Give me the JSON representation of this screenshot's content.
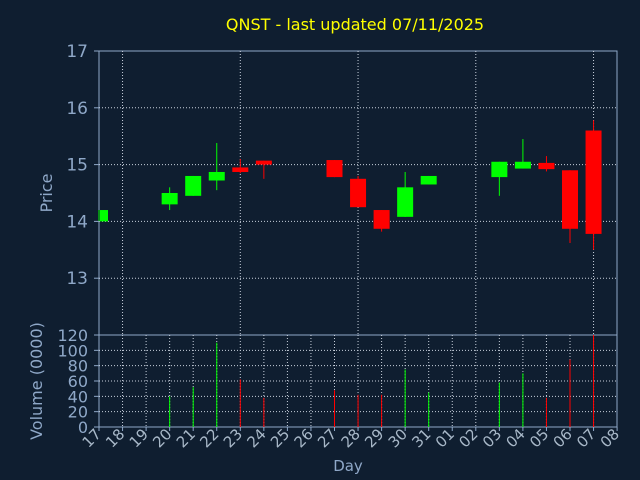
{
  "chart_data": [
    {
      "type": "candlestick",
      "title": "QNST - last updated 07/11/2025",
      "ylabel": "Price",
      "ylim": [
        12,
        17
      ],
      "yticks": [
        13,
        14,
        15,
        16,
        17
      ],
      "grid": true,
      "up_color": "#00ff00",
      "down_color": "#ff0000",
      "categories": [
        "17",
        "18",
        "19",
        "20",
        "21",
        "22",
        "23",
        "24",
        "25",
        "26",
        "27",
        "28",
        "29",
        "30",
        "31",
        "01",
        "02",
        "03",
        "04",
        "05",
        "06",
        "07",
        "08"
      ],
      "candles": [
        {
          "day": "17",
          "open": 14.0,
          "high": 14.2,
          "low": 14.0,
          "close": 14.2
        },
        {
          "day": "20",
          "open": 14.3,
          "high": 14.6,
          "low": 14.2,
          "close": 14.5
        },
        {
          "day": "21",
          "open": 14.45,
          "high": 14.8,
          "low": 14.45,
          "close": 14.8
        },
        {
          "day": "22",
          "open": 14.72,
          "high": 15.38,
          "low": 14.55,
          "close": 14.87
        },
        {
          "day": "23",
          "open": 14.95,
          "high": 15.1,
          "low": 14.85,
          "close": 14.87
        },
        {
          "day": "24",
          "open": 15.07,
          "high": 15.07,
          "low": 14.75,
          "close": 15.0
        },
        {
          "day": "27",
          "open": 15.08,
          "high": 15.08,
          "low": 14.78,
          "close": 14.78
        },
        {
          "day": "28",
          "open": 14.75,
          "high": 14.8,
          "low": 14.25,
          "close": 14.25
        },
        {
          "day": "29",
          "open": 14.2,
          "high": 14.2,
          "low": 13.82,
          "close": 13.87
        },
        {
          "day": "30",
          "open": 14.08,
          "high": 14.87,
          "low": 14.08,
          "close": 14.6
        },
        {
          "day": "31",
          "open": 14.65,
          "high": 14.8,
          "low": 14.65,
          "close": 14.8
        },
        {
          "day": "03",
          "open": 14.78,
          "high": 15.05,
          "low": 14.45,
          "close": 15.05
        },
        {
          "day": "04",
          "open": 14.93,
          "high": 15.45,
          "low": 14.93,
          "close": 15.05
        },
        {
          "day": "05",
          "open": 15.03,
          "high": 15.15,
          "low": 14.88,
          "close": 14.92
        },
        {
          "day": "06",
          "open": 14.9,
          "high": 14.9,
          "low": 13.62,
          "close": 13.87
        },
        {
          "day": "07",
          "open": 15.6,
          "high": 15.78,
          "low": 13.5,
          "close": 13.78
        }
      ]
    },
    {
      "type": "bar",
      "ylabel": "Volume (0000)",
      "xlabel": "Day",
      "ylim": [
        0,
        120
      ],
      "yticks": [
        0,
        20,
        40,
        60,
        80,
        100,
        120
      ],
      "grid": true,
      "categories": [
        "17",
        "18",
        "19",
        "20",
        "21",
        "22",
        "23",
        "24",
        "25",
        "26",
        "27",
        "28",
        "29",
        "30",
        "31",
        "01",
        "02",
        "03",
        "04",
        "05",
        "06",
        "07",
        "08"
      ],
      "bars": [
        {
          "day": "20",
          "value": 40,
          "direction": "up"
        },
        {
          "day": "21",
          "value": 52,
          "direction": "up"
        },
        {
          "day": "22",
          "value": 110,
          "direction": "up"
        },
        {
          "day": "23",
          "value": 62,
          "direction": "down"
        },
        {
          "day": "24",
          "value": 38,
          "direction": "down"
        },
        {
          "day": "27",
          "value": 48,
          "direction": "down"
        },
        {
          "day": "28",
          "value": 42,
          "direction": "down"
        },
        {
          "day": "29",
          "value": 42,
          "direction": "down"
        },
        {
          "day": "30",
          "value": 75,
          "direction": "up"
        },
        {
          "day": "31",
          "value": 45,
          "direction": "up"
        },
        {
          "day": "03",
          "value": 58,
          "direction": "up"
        },
        {
          "day": "04",
          "value": 70,
          "direction": "up"
        },
        {
          "day": "05",
          "value": 38,
          "direction": "down"
        },
        {
          "day": "06",
          "value": 88,
          "direction": "down"
        },
        {
          "day": "07",
          "value": 120,
          "direction": "down"
        }
      ]
    }
  ]
}
